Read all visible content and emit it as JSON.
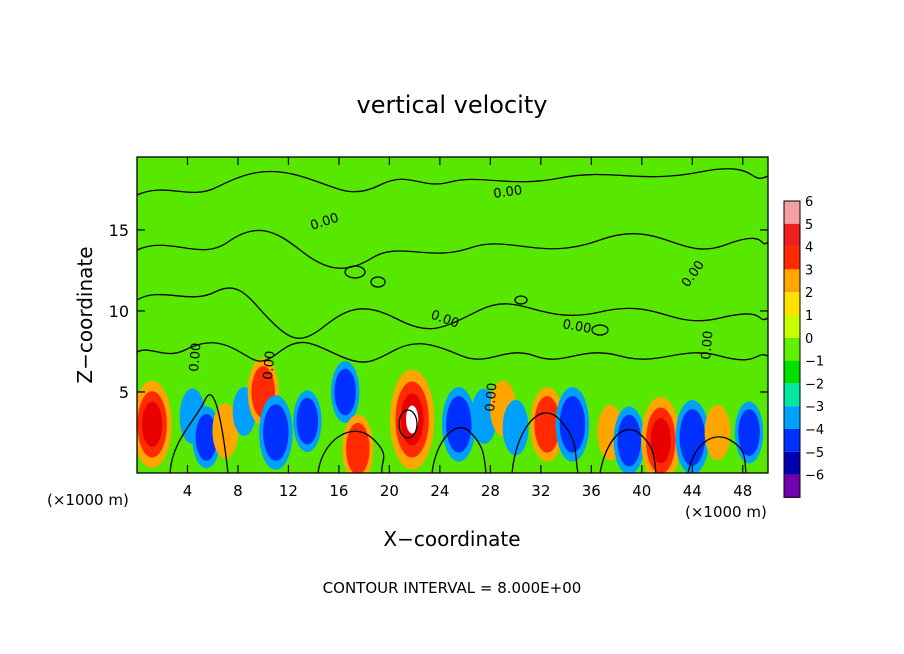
{
  "chart_data": {
    "type": "heatmap",
    "title": "vertical velocity",
    "xlabel": "X−coordinate",
    "ylabel": "Z−coordinate",
    "x_unit_left": "(×1000 m)",
    "x_unit_right": "(×1000 m)",
    "footer": "CONTOUR INTERVAL = 8.000E+00",
    "xlim": [
      0,
      50
    ],
    "ylim": [
      0,
      19.5
    ],
    "x_ticks": [
      "4",
      "8",
      "12",
      "16",
      "20",
      "24",
      "28",
      "32",
      "36",
      "40",
      "44",
      "48"
    ],
    "x_tick_values": [
      4,
      8,
      12,
      16,
      20,
      24,
      28,
      32,
      36,
      40,
      44,
      48
    ],
    "y_ticks": [
      "5",
      "10",
      "15"
    ],
    "y_tick_values": [
      5,
      10,
      15
    ],
    "contour_label": "0.00",
    "colorbar": {
      "labels": [
        "6",
        "5",
        "4",
        "3",
        "2",
        "1",
        "0",
        "−1",
        "−2",
        "−3",
        "−4",
        "−5",
        "−6"
      ],
      "values": [
        6,
        5,
        4,
        3,
        2,
        1,
        0,
        -1,
        -2,
        -3,
        -4,
        -5,
        -6
      ],
      "colors": [
        "#f4a0a0",
        "#f02020",
        "#ff2a00",
        "#ffa500",
        "#ffe000",
        "#c8ff00",
        "#60f000",
        "#00e000",
        "#00e8a0",
        "#00a0ff",
        "#0030ff",
        "#0000b0",
        "#7000b0"
      ]
    },
    "features": [
      {
        "x": 1.2,
        "z": 3.0,
        "w": 8
      },
      {
        "x": 4.4,
        "z": 3.5,
        "w": -3
      },
      {
        "x": 5.5,
        "z": 2.2,
        "w": -4
      },
      {
        "x": 7.0,
        "z": 2.6,
        "w": 3
      },
      {
        "x": 8.5,
        "z": 3.8,
        "w": -2
      },
      {
        "x": 10.0,
        "z": 5.0,
        "w": 5
      },
      {
        "x": 11.0,
        "z": 2.5,
        "w": -6
      },
      {
        "x": 13.5,
        "z": 3.2,
        "w": -4
      },
      {
        "x": 16.5,
        "z": 5.0,
        "w": -4
      },
      {
        "x": 17.5,
        "z": 1.5,
        "w": 5
      },
      {
        "x": 21.8,
        "z": 3.3,
        "w": 10
      },
      {
        "x": 25.5,
        "z": 3.0,
        "w": -6
      },
      {
        "x": 27.5,
        "z": 3.5,
        "w": -3
      },
      {
        "x": 29.0,
        "z": 4.0,
        "w": 3
      },
      {
        "x": 30.0,
        "z": 2.8,
        "w": -3
      },
      {
        "x": 32.5,
        "z": 3.0,
        "w": 6
      },
      {
        "x": 34.5,
        "z": 3.0,
        "w": -6
      },
      {
        "x": 37.5,
        "z": 2.5,
        "w": 3
      },
      {
        "x": 39.0,
        "z": 2.0,
        "w": -5
      },
      {
        "x": 41.5,
        "z": 2.0,
        "w": 8
      },
      {
        "x": 44.0,
        "z": 2.2,
        "w": -6
      },
      {
        "x": 46.0,
        "z": 2.5,
        "w": 3
      },
      {
        "x": 48.5,
        "z": 2.5,
        "w": -4
      }
    ]
  }
}
